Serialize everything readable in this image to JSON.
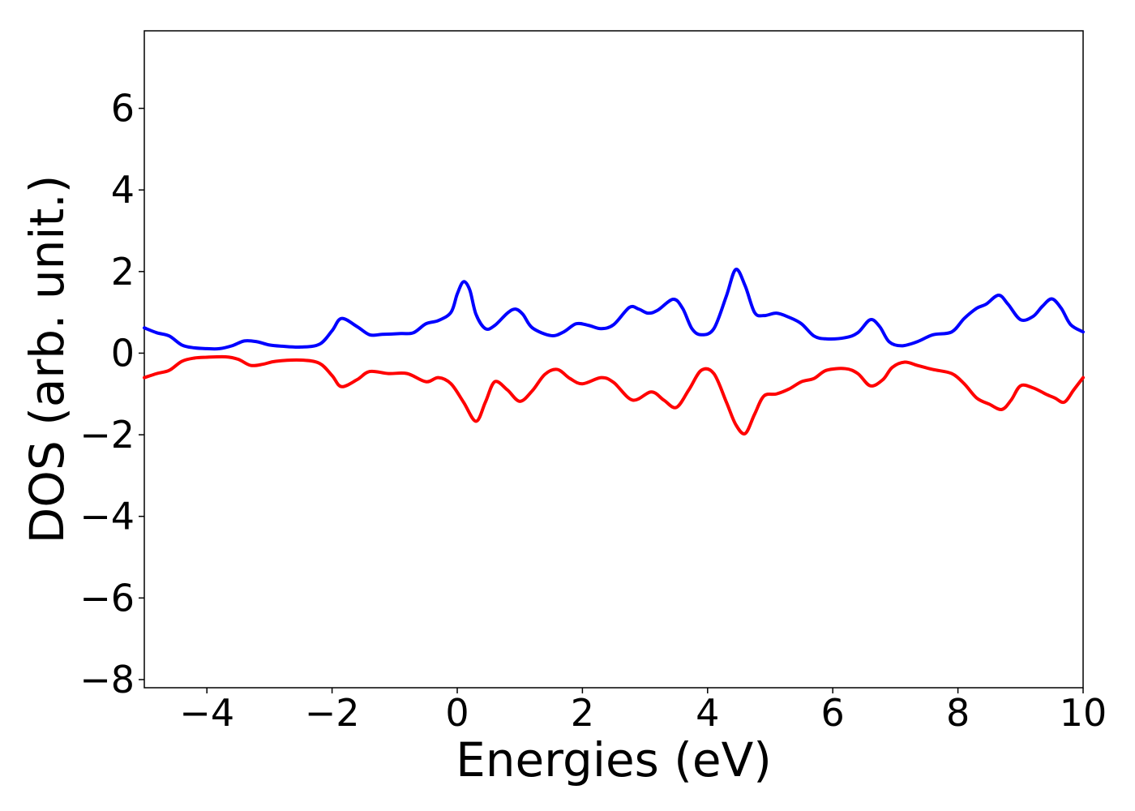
{
  "chart_data": {
    "type": "line",
    "title": "",
    "xlabel": "Energies (eV)",
    "ylabel": "DOS (arb. unit.)",
    "xlim": [
      -5,
      10
    ],
    "ylim": [
      -8.2,
      7.9
    ],
    "xticks": [
      -4,
      -2,
      0,
      2,
      4,
      6,
      8,
      10
    ],
    "xtick_labels": [
      "−4",
      "−2",
      "0",
      "2",
      "4",
      "6",
      "8",
      "10"
    ],
    "yticks": [
      -8,
      -6,
      -4,
      -2,
      0,
      2,
      4,
      6
    ],
    "ytick_labels": [
      "−8",
      "−6",
      "−4",
      "−2",
      "0",
      "2",
      "4",
      "6"
    ],
    "grid": false,
    "legend": "none",
    "series": [
      {
        "color": "#0000ff",
        "points": [
          [
            -5.0,
            0.62
          ],
          [
            -4.8,
            0.5
          ],
          [
            -4.6,
            0.42
          ],
          [
            -4.4,
            0.2
          ],
          [
            -4.2,
            0.13
          ],
          [
            -4.0,
            0.11
          ],
          [
            -3.8,
            0.11
          ],
          [
            -3.6,
            0.18
          ],
          [
            -3.4,
            0.3
          ],
          [
            -3.2,
            0.28
          ],
          [
            -3.0,
            0.2
          ],
          [
            -2.8,
            0.17
          ],
          [
            -2.5,
            0.15
          ],
          [
            -2.2,
            0.22
          ],
          [
            -2.0,
            0.55
          ],
          [
            -1.85,
            0.85
          ],
          [
            -1.6,
            0.65
          ],
          [
            -1.4,
            0.45
          ],
          [
            -1.2,
            0.46
          ],
          [
            -0.9,
            0.48
          ],
          [
            -0.7,
            0.5
          ],
          [
            -0.5,
            0.72
          ],
          [
            -0.3,
            0.8
          ],
          [
            -0.1,
            1.0
          ],
          [
            0.0,
            1.45
          ],
          [
            0.1,
            1.75
          ],
          [
            0.2,
            1.55
          ],
          [
            0.3,
            0.95
          ],
          [
            0.45,
            0.6
          ],
          [
            0.6,
            0.68
          ],
          [
            0.8,
            0.98
          ],
          [
            0.93,
            1.08
          ],
          [
            1.05,
            0.95
          ],
          [
            1.2,
            0.62
          ],
          [
            1.5,
            0.43
          ],
          [
            1.7,
            0.52
          ],
          [
            1.9,
            0.72
          ],
          [
            2.1,
            0.68
          ],
          [
            2.3,
            0.6
          ],
          [
            2.5,
            0.7
          ],
          [
            2.75,
            1.12
          ],
          [
            2.9,
            1.08
          ],
          [
            3.05,
            0.98
          ],
          [
            3.2,
            1.05
          ],
          [
            3.45,
            1.32
          ],
          [
            3.6,
            1.1
          ],
          [
            3.75,
            0.6
          ],
          [
            3.9,
            0.45
          ],
          [
            4.1,
            0.6
          ],
          [
            4.3,
            1.4
          ],
          [
            4.45,
            2.05
          ],
          [
            4.6,
            1.65
          ],
          [
            4.75,
            1.0
          ],
          [
            4.9,
            0.92
          ],
          [
            5.1,
            0.98
          ],
          [
            5.3,
            0.88
          ],
          [
            5.5,
            0.72
          ],
          [
            5.7,
            0.42
          ],
          [
            5.9,
            0.35
          ],
          [
            6.2,
            0.38
          ],
          [
            6.4,
            0.5
          ],
          [
            6.6,
            0.82
          ],
          [
            6.75,
            0.65
          ],
          [
            6.9,
            0.28
          ],
          [
            7.1,
            0.18
          ],
          [
            7.35,
            0.28
          ],
          [
            7.6,
            0.45
          ],
          [
            7.9,
            0.52
          ],
          [
            8.1,
            0.85
          ],
          [
            8.3,
            1.1
          ],
          [
            8.45,
            1.2
          ],
          [
            8.65,
            1.42
          ],
          [
            8.8,
            1.2
          ],
          [
            9.0,
            0.82
          ],
          [
            9.2,
            0.9
          ],
          [
            9.35,
            1.15
          ],
          [
            9.5,
            1.33
          ],
          [
            9.65,
            1.1
          ],
          [
            9.8,
            0.7
          ],
          [
            10.0,
            0.52
          ]
        ]
      },
      {
        "color": "#ff0000",
        "points": [
          [
            -5.0,
            -0.6
          ],
          [
            -4.8,
            -0.5
          ],
          [
            -4.6,
            -0.42
          ],
          [
            -4.4,
            -0.2
          ],
          [
            -4.2,
            -0.12
          ],
          [
            -4.0,
            -0.1
          ],
          [
            -3.7,
            -0.09
          ],
          [
            -3.5,
            -0.15
          ],
          [
            -3.3,
            -0.3
          ],
          [
            -3.1,
            -0.27
          ],
          [
            -2.9,
            -0.2
          ],
          [
            -2.5,
            -0.17
          ],
          [
            -2.2,
            -0.25
          ],
          [
            -2.0,
            -0.55
          ],
          [
            -1.85,
            -0.82
          ],
          [
            -1.6,
            -0.65
          ],
          [
            -1.4,
            -0.45
          ],
          [
            -1.1,
            -0.5
          ],
          [
            -0.8,
            -0.5
          ],
          [
            -0.5,
            -0.7
          ],
          [
            -0.3,
            -0.6
          ],
          [
            -0.1,
            -0.75
          ],
          [
            0.1,
            -1.2
          ],
          [
            0.3,
            -1.67
          ],
          [
            0.45,
            -1.2
          ],
          [
            0.6,
            -0.7
          ],
          [
            0.8,
            -0.9
          ],
          [
            1.0,
            -1.18
          ],
          [
            1.2,
            -0.92
          ],
          [
            1.4,
            -0.52
          ],
          [
            1.6,
            -0.4
          ],
          [
            1.8,
            -0.62
          ],
          [
            2.0,
            -0.75
          ],
          [
            2.3,
            -0.6
          ],
          [
            2.5,
            -0.72
          ],
          [
            2.8,
            -1.15
          ],
          [
            3.1,
            -0.95
          ],
          [
            3.3,
            -1.15
          ],
          [
            3.5,
            -1.33
          ],
          [
            3.7,
            -0.9
          ],
          [
            3.9,
            -0.42
          ],
          [
            4.1,
            -0.5
          ],
          [
            4.3,
            -1.2
          ],
          [
            4.45,
            -1.75
          ],
          [
            4.6,
            -1.97
          ],
          [
            4.75,
            -1.5
          ],
          [
            4.9,
            -1.05
          ],
          [
            5.1,
            -1.0
          ],
          [
            5.3,
            -0.88
          ],
          [
            5.5,
            -0.7
          ],
          [
            5.7,
            -0.62
          ],
          [
            5.9,
            -0.42
          ],
          [
            6.2,
            -0.38
          ],
          [
            6.4,
            -0.5
          ],
          [
            6.6,
            -0.8
          ],
          [
            6.8,
            -0.65
          ],
          [
            6.95,
            -0.35
          ],
          [
            7.15,
            -0.22
          ],
          [
            7.35,
            -0.3
          ],
          [
            7.6,
            -0.4
          ],
          [
            7.9,
            -0.5
          ],
          [
            8.1,
            -0.75
          ],
          [
            8.3,
            -1.1
          ],
          [
            8.5,
            -1.25
          ],
          [
            8.7,
            -1.38
          ],
          [
            8.85,
            -1.15
          ],
          [
            9.0,
            -0.8
          ],
          [
            9.2,
            -0.85
          ],
          [
            9.4,
            -1.0
          ],
          [
            9.55,
            -1.1
          ],
          [
            9.7,
            -1.2
          ],
          [
            9.85,
            -0.9
          ],
          [
            10.0,
            -0.6
          ]
        ]
      }
    ]
  }
}
